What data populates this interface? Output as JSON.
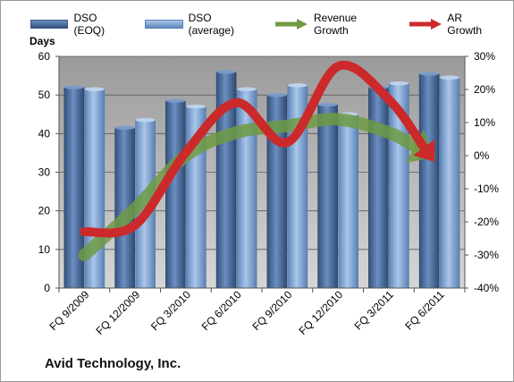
{
  "company": "Avid Technology, Inc.",
  "chart_data": {
    "type": "bar",
    "title": "",
    "ylabel_left": "Days",
    "ylim_left": [
      0,
      60
    ],
    "yticks_left": [
      "0",
      "10",
      "20",
      "30",
      "40",
      "50",
      "60"
    ],
    "ylim_right": [
      -40,
      30
    ],
    "yticks_right": [
      "-40%",
      "-30%",
      "-20%",
      "-10%",
      "0%",
      "10%",
      "20%",
      "30%"
    ],
    "categories": [
      "FQ 9/2009",
      "FQ 12/2009",
      "FQ 3/2010",
      "FQ 6/2010",
      "FQ 9/2010",
      "FQ 12/2010",
      "FQ 3/2011",
      "FQ 6/2011"
    ],
    "series": [
      {
        "name": "DSO (EOQ)",
        "kind": "bar",
        "axis": "left",
        "color": "#4a6d9e",
        "values": [
          52,
          41.5,
          48.5,
          56,
          50,
          47.5,
          52,
          55.5
        ]
      },
      {
        "name": "DSO (average)",
        "kind": "bar",
        "axis": "left",
        "color": "#7ea4d3",
        "values": [
          51.5,
          43.5,
          47,
          51.5,
          52.5,
          45,
          53,
          54.5
        ]
      },
      {
        "name": "Revenue Growth",
        "kind": "arrow",
        "axis": "right",
        "color": "#6f9a43",
        "values": [
          -30,
          -16,
          0,
          7,
          9,
          11,
          7,
          0
        ]
      },
      {
        "name": "AR Growth",
        "kind": "arrow",
        "axis": "right",
        "color": "#cc2a2a",
        "values": [
          -23,
          -21,
          1,
          16,
          4,
          27,
          17,
          -1
        ]
      }
    ],
    "grid": true,
    "legend": "top"
  }
}
